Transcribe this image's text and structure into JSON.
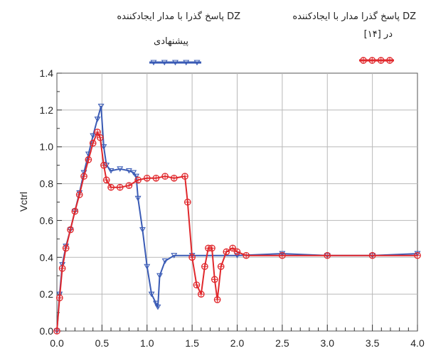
{
  "chart_data": {
    "type": "line",
    "title": "",
    "xlabel": "",
    "ylabel": "Vctrl",
    "xlim": [
      0.0,
      4.0
    ],
    "ylim": [
      0.0,
      1.4
    ],
    "grid": true,
    "legend_position": "top",
    "x_ticks": [
      "0.0",
      "0.5",
      "1.0",
      "1.5",
      "2.0",
      "2.5",
      "3.0",
      "3.5",
      "4.0"
    ],
    "y_ticks": [
      "0.0",
      "0.2",
      "0.4",
      "0.6",
      "0.8",
      "1.0",
      "1.2",
      "1.4"
    ],
    "series": [
      {
        "name": "پاسخ گذرا با مدار ایجادکننده DZ پیشنهادی",
        "legend_line1": "پاسخ گذرا با مدار ایجادکننده DZ",
        "legend_line2": "پیشنهادی",
        "color": "#3a5bb5",
        "marker": "triangle-down",
        "points": [
          [
            0.0,
            0.0
          ],
          [
            0.03,
            0.2
          ],
          [
            0.06,
            0.36
          ],
          [
            0.1,
            0.46
          ],
          [
            0.15,
            0.55
          ],
          [
            0.2,
            0.65
          ],
          [
            0.25,
            0.75
          ],
          [
            0.3,
            0.86
          ],
          [
            0.35,
            0.96
          ],
          [
            0.4,
            1.06
          ],
          [
            0.45,
            1.15
          ],
          [
            0.49,
            1.22
          ],
          [
            0.52,
            1.0
          ],
          [
            0.55,
            0.9
          ],
          [
            0.6,
            0.87
          ],
          [
            0.7,
            0.88
          ],
          [
            0.8,
            0.87
          ],
          [
            0.85,
            0.86
          ],
          [
            0.88,
            0.84
          ],
          [
            0.9,
            0.72
          ],
          [
            0.95,
            0.55
          ],
          [
            1.0,
            0.35
          ],
          [
            1.05,
            0.2
          ],
          [
            1.1,
            0.15
          ],
          [
            1.12,
            0.13
          ],
          [
            1.14,
            0.3
          ],
          [
            1.2,
            0.38
          ],
          [
            1.3,
            0.41
          ],
          [
            1.5,
            0.41
          ],
          [
            2.0,
            0.41
          ],
          [
            2.5,
            0.42
          ],
          [
            3.0,
            0.41
          ],
          [
            3.5,
            0.41
          ],
          [
            4.0,
            0.42
          ]
        ]
      },
      {
        "name": "پاسخ گذرا مدار با ایجادکننده DZ در [۱۴]",
        "legend_line1": "پاسخ گذرا مدار با ایجادکننده DZ",
        "legend_line2": "در [۱۴]",
        "color": "#e0282c",
        "marker": "circle-plus",
        "points": [
          [
            0.0,
            0.0
          ],
          [
            0.03,
            0.18
          ],
          [
            0.06,
            0.34
          ],
          [
            0.1,
            0.45
          ],
          [
            0.15,
            0.55
          ],
          [
            0.2,
            0.65
          ],
          [
            0.25,
            0.74
          ],
          [
            0.3,
            0.84
          ],
          [
            0.35,
            0.93
          ],
          [
            0.4,
            1.02
          ],
          [
            0.45,
            1.08
          ],
          [
            0.48,
            1.05
          ],
          [
            0.52,
            0.9
          ],
          [
            0.55,
            0.82
          ],
          [
            0.6,
            0.78
          ],
          [
            0.7,
            0.78
          ],
          [
            0.8,
            0.79
          ],
          [
            0.9,
            0.82
          ],
          [
            1.0,
            0.83
          ],
          [
            1.1,
            0.83
          ],
          [
            1.2,
            0.84
          ],
          [
            1.3,
            0.83
          ],
          [
            1.42,
            0.84
          ],
          [
            1.45,
            0.7
          ],
          [
            1.5,
            0.4
          ],
          [
            1.55,
            0.25
          ],
          [
            1.6,
            0.2
          ],
          [
            1.64,
            0.35
          ],
          [
            1.68,
            0.45
          ],
          [
            1.72,
            0.45
          ],
          [
            1.75,
            0.28
          ],
          [
            1.78,
            0.17
          ],
          [
            1.82,
            0.35
          ],
          [
            1.88,
            0.43
          ],
          [
            1.95,
            0.45
          ],
          [
            2.0,
            0.43
          ],
          [
            2.1,
            0.41
          ],
          [
            2.5,
            0.41
          ],
          [
            3.0,
            0.41
          ],
          [
            3.5,
            0.41
          ],
          [
            4.0,
            0.41
          ]
        ]
      }
    ]
  }
}
